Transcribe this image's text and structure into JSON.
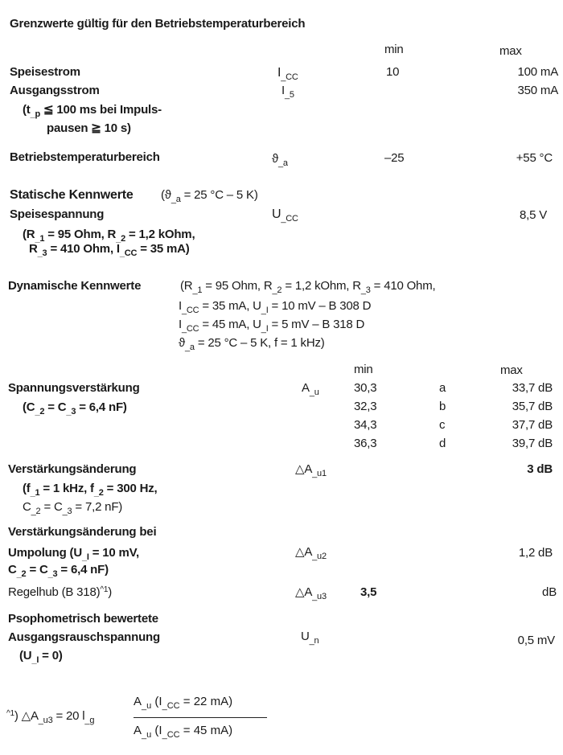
{
  "title": "Grenzwerte gültig für den Betriebstemperaturbereich",
  "limits": {
    "col_min": "min",
    "col_max": "max",
    "rows": [
      {
        "label": [
          "Speisestrom"
        ],
        "symbol": [
          "I",
          "_CC"
        ],
        "min": "10",
        "max": "100 mA"
      },
      {
        "label": [
          "Ausgangsstrom"
        ],
        "symbol": [
          "I",
          "_5"
        ],
        "min": "",
        "max": "350 mA"
      },
      {
        "label": [
          "(t",
          "_p",
          " ≦ 100 ms bei Impuls-"
        ]
      },
      {
        "label": [
          "pausen ≧ 10 s)"
        ]
      },
      {
        "label": [
          "Betriebstemperaturbereich"
        ],
        "symbol": [
          "ϑ",
          "_a"
        ],
        "min": "–25",
        "max": "+55 °C"
      }
    ]
  },
  "static": {
    "heading": "Statische Kennwerte",
    "condition": [
      "(ϑ",
      "_a",
      " = 25 °C – 5 K)"
    ],
    "label": "Speisespannung",
    "symbol": [
      "U",
      "_CC"
    ],
    "max": "8,5 V",
    "cond1": [
      "(R",
      "_1",
      " = 95 Ohm, R",
      "_2",
      " = 1,2 kOhm,"
    ],
    "cond2": [
      "R",
      "_3",
      " = 410 Ohm, I",
      "_CC",
      " = 35 mA)"
    ]
  },
  "dynamic": {
    "heading": "Dynamische Kennwerte",
    "cond": [
      [
        "(R",
        "_1",
        " = 95 Ohm, R",
        "_2",
        " = 1,2 kOhm, R",
        "_3",
        " = 410 Ohm,"
      ],
      [
        "I",
        "_CC",
        " = 35 mA, U",
        "_I",
        " = 10 mV – B 308 D"
      ],
      [
        "I",
        "_CC",
        " = 45 mA, U",
        "_I",
        " =  5 mV – B 318 D"
      ],
      [
        "ϑ",
        "_a",
        " = 25 °C – 5 K, f = 1 kHz)"
      ]
    ],
    "col_min": "min",
    "col_max": "max",
    "gain": {
      "label": "Spannungsverstärkung",
      "cond": [
        "(C",
        "_2",
        " = C",
        "_3",
        " = 6,4 nF)"
      ],
      "symbol": [
        "A",
        "_u"
      ],
      "rows": [
        {
          "min": "30,3",
          "group": "a",
          "max": "33,7 dB"
        },
        {
          "min": "32,3",
          "group": "b",
          "max": "35,7 dB"
        },
        {
          "min": "34,3",
          "group": "c",
          "max": "37,7 dB"
        },
        {
          "min": "36,3",
          "group": "d",
          "max": "39,7 dB"
        }
      ]
    },
    "gain_change": {
      "label": "Verstärkungsänderung",
      "cond1": [
        "(f",
        "_1",
        " = 1 kHz, f",
        "_2",
        " = 300 Hz,"
      ],
      "cond2": [
        "C",
        "_2",
        " = C",
        "_3",
        " = 7,2 nF)"
      ],
      "symbol": [
        "△A",
        "_u1"
      ],
      "max": "3 dB"
    },
    "polarity": {
      "label1": "Verstärkungsänderung bei",
      "label2": [
        "Umpolung (U",
        "_I",
        " = 10 mV,"
      ],
      "label3": [
        "C",
        "_2",
        " = C",
        "_3",
        " = 6,4 nF)"
      ],
      "symbol": [
        "△A",
        "_u2"
      ],
      "max": "1,2 dB"
    },
    "control": {
      "label": [
        "Regelhub (B 318)",
        "^1",
        ")"
      ],
      "symbol": [
        "△A",
        "_u3"
      ],
      "min": "3,5",
      "max": "dB"
    },
    "noise": {
      "label1": "Psophometrisch bewertete",
      "label2": "Ausgangsrauschspannung",
      "cond": [
        "(U",
        "_I",
        " = 0)"
      ],
      "symbol": [
        "U",
        "_n"
      ],
      "max": "0,5 mV"
    }
  },
  "footnote": {
    "lhs": [
      "^1",
      ")  △A",
      "_u3",
      " = 20 l",
      "_g"
    ],
    "numerator": [
      "A",
      "_u",
      " (I",
      "_CC",
      " = 22 mA)"
    ],
    "denominator": [
      "A",
      "_u",
      " (I",
      "_CC",
      " = 45 mA)"
    ]
  }
}
